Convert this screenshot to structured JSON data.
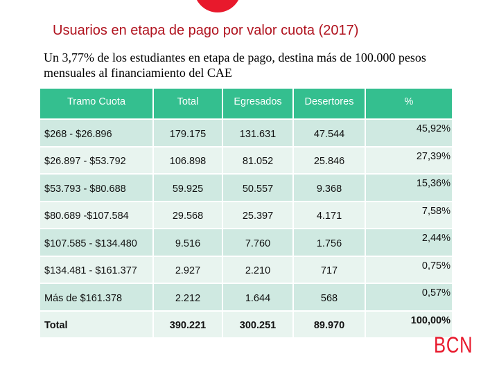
{
  "title": "Usuarios en etapa de pago por valor cuota (2017)",
  "subtitle": "Un 3,77% de los estudiantes en etapa de pago, destina más de 100.000 pesos mensuales al financiamiento del CAE",
  "table": {
    "headers": [
      "Tramo Cuota",
      "Total",
      "Egresados",
      "Desertores",
      "%"
    ],
    "rows": [
      [
        "$268   -   $26.896",
        "179.175",
        "131.631",
        "47.544",
        "45,92%"
      ],
      [
        "$26.897 - $53.792",
        "106.898",
        "81.052",
        "25.846",
        "27,39%"
      ],
      [
        "$53.793 - $80.688",
        "59.925",
        "50.557",
        "9.368",
        "15,36%"
      ],
      [
        "$80.689 -$107.584",
        "29.568",
        "25.397",
        "4.171",
        "7,58%"
      ],
      [
        "$107.585 - $134.480",
        "9.516",
        "7.760",
        "1.756",
        "2,44%"
      ],
      [
        "$134.481 - $161.377",
        "2.927",
        "2.210",
        "717",
        "0,75%"
      ],
      [
        "Más de $161.378",
        "2.212",
        "1.644",
        "568",
        "0,57%"
      ]
    ],
    "total": [
      "Total",
      "390.221",
      "300.251",
      "89.970",
      "100,00%"
    ]
  },
  "logo": "BCN",
  "colors": {
    "accent_red": "#e8192c",
    "header_green": "#34bf8f",
    "row_dark": "#cfe9e1",
    "row_light": "#e8f4ef"
  }
}
